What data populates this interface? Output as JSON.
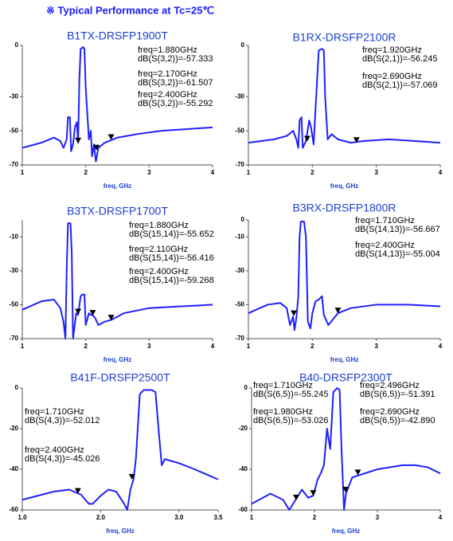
{
  "header": "※ Typical Performance at Tc=25℃",
  "chart_data": [
    {
      "type": "line",
      "title": "B1TX-DRSFP1900T",
      "x_label": "freq, GHz",
      "x": [
        1.0,
        1.3,
        1.5,
        1.6,
        1.65,
        1.7,
        1.72,
        1.75,
        1.77,
        1.8,
        1.83,
        1.86,
        1.88,
        1.9,
        1.92,
        1.96,
        1.98,
        2.0,
        2.05,
        2.08,
        2.1,
        2.13,
        2.16,
        2.2,
        2.3,
        2.5,
        2.8,
        3.2,
        3.6,
        4.0
      ],
      "series": [
        {
          "color": "#1f1fff",
          "values": [
            -60,
            -57,
            -54,
            -56,
            -60,
            -55,
            -42,
            -42,
            -62,
            -58,
            -48,
            -45,
            -57,
            -20,
            -2,
            -1,
            -2,
            -25,
            -55,
            -50,
            -65,
            -58,
            -68,
            -60,
            -57,
            -54,
            -52,
            -50,
            -49,
            -48
          ]
        }
      ],
      "xlim": [
        1,
        4
      ],
      "ylim": [
        -70,
        0
      ],
      "xticks": [
        1,
        2,
        3,
        4
      ],
      "yticks": [
        0,
        -30,
        -50,
        -70
      ],
      "markers": [
        {
          "x": 1.88,
          "value": -57.333,
          "freq": "freq=1.880GHz",
          "label": "dB(S(3,2))=-57.333"
        },
        {
          "x": 2.17,
          "value": -61.507,
          "freq": "freq=2.170GHz",
          "label": "dB(S(3,2))=-61.507"
        },
        {
          "x": 2.4,
          "value": -55.292,
          "freq": "freq=2.400GHz",
          "label": "dB(S(3,2))=-55.292"
        }
      ]
    },
    {
      "type": "line",
      "title": "B1RX-DRSFP2100R",
      "x_label": "freq, GHz",
      "x": [
        1.0,
        1.4,
        1.6,
        1.7,
        1.75,
        1.78,
        1.8,
        1.83,
        1.85,
        1.9,
        1.95,
        1.98,
        2.02,
        2.06,
        2.1,
        2.15,
        2.18,
        2.2,
        2.24,
        2.3,
        2.4,
        2.6,
        2.8,
        3.2,
        3.6,
        4.0
      ],
      "series": [
        {
          "color": "#1f1fff",
          "values": [
            -57,
            -55,
            -53,
            -50,
            -55,
            -60,
            -44,
            -42,
            -60,
            -56,
            -44,
            -48,
            -58,
            -30,
            -3,
            -2,
            -3,
            -30,
            -55,
            -52,
            -55,
            -57,
            -56,
            -55,
            -56,
            -57
          ]
        }
      ],
      "xlim": [
        1,
        4
      ],
      "ylim": [
        -70,
        0
      ],
      "xticks": [
        1,
        2,
        3,
        4
      ],
      "yticks": [
        0,
        -30,
        -50,
        -70
      ],
      "markers": [
        {
          "x": 1.92,
          "value": -56.245,
          "freq": "freq=1.920GHz",
          "label": "dB(S(2,1))=-56.245"
        },
        {
          "x": 2.69,
          "value": -57.069,
          "freq": "freq=2.690GHz",
          "label": "dB(S(2,1))=-57.069"
        }
      ]
    },
    {
      "type": "line",
      "title": "B3TX-DRSFP1700T",
      "x_label": "freq, GHz",
      "x": [
        1.0,
        1.3,
        1.5,
        1.6,
        1.65,
        1.68,
        1.7,
        1.72,
        1.76,
        1.78,
        1.8,
        1.85,
        1.88,
        1.92,
        1.95,
        1.98,
        2.0,
        2.05,
        2.08,
        2.11,
        2.15,
        2.2,
        2.3,
        2.4,
        2.6,
        3.0,
        3.5,
        4.0
      ],
      "series": [
        {
          "color": "#1f1fff",
          "values": [
            -53,
            -48,
            -47,
            -52,
            -60,
            -70,
            -30,
            -2,
            -2,
            -20,
            -70,
            -55,
            -56,
            -45,
            -44,
            -44,
            -62,
            -55,
            -56,
            -56,
            -58,
            -62,
            -60,
            -59,
            -55,
            -52,
            -51,
            -50
          ]
        }
      ],
      "xlim": [
        1,
        4
      ],
      "ylim": [
        -70,
        0
      ],
      "xticks": [
        1,
        2,
        3,
        4
      ],
      "yticks": [
        -10,
        -30,
        -50,
        -70
      ],
      "markers": [
        {
          "x": 1.88,
          "value": -55.652,
          "freq": "freq=1.880GHz",
          "label": "dB(S(15,14))=-55.652"
        },
        {
          "x": 2.11,
          "value": -56.416,
          "freq": "freq=2.110GHz",
          "label": "dB(S(15,14))=-56.416"
        },
        {
          "x": 2.4,
          "value": -59.268,
          "freq": "freq=2.400GHz",
          "label": "dB(S(15,14))=-59.268"
        }
      ]
    },
    {
      "type": "line",
      "title": "B3RX-DRSFP1800R",
      "x_label": "freq, GHz",
      "x": [
        1.0,
        1.3,
        1.5,
        1.6,
        1.65,
        1.7,
        1.72,
        1.75,
        1.78,
        1.8,
        1.82,
        1.87,
        1.9,
        1.93,
        1.97,
        2.0,
        2.05,
        2.1,
        2.15,
        2.18,
        2.25,
        2.4,
        2.6,
        3.0,
        3.5,
        4.0
      ],
      "series": [
        {
          "color": "#1f1fff",
          "values": [
            -55,
            -50,
            -49,
            -52,
            -62,
            -57,
            -65,
            -58,
            -45,
            -10,
            -1,
            -1,
            -10,
            -60,
            -64,
            -55,
            -48,
            -47,
            -45,
            -56,
            -62,
            -55,
            -52,
            -50,
            -50,
            -51
          ]
        }
      ],
      "xlim": [
        1,
        4
      ],
      "ylim": [
        -70,
        0
      ],
      "xticks": [
        1,
        2,
        3,
        4
      ],
      "yticks": [
        0,
        -10,
        -30,
        -50,
        -70
      ],
      "markers": [
        {
          "x": 1.71,
          "value": -56.667,
          "freq": "freq=1.710GHz",
          "label": "dB(S(14,13))=-56.667"
        },
        {
          "x": 2.4,
          "value": -55.004,
          "freq": "freq=2.400GHz",
          "label": "dB(S(14,13))=-55.004"
        }
      ]
    },
    {
      "type": "line",
      "title": "B41F-DRSFP2500T",
      "x_label": "freq, GHz",
      "x": [
        1.0,
        1.2,
        1.4,
        1.6,
        1.75,
        1.85,
        1.9,
        2.0,
        2.1,
        2.2,
        2.3,
        2.34,
        2.38,
        2.42,
        2.45,
        2.5,
        2.55,
        2.65,
        2.7,
        2.75,
        2.78,
        2.82,
        3.0,
        3.2,
        3.5
      ],
      "series": [
        {
          "color": "#1f1fff",
          "values": [
            -55,
            -53,
            -51,
            -50,
            -52.5,
            -57,
            -57,
            -53,
            -50,
            -51,
            -57,
            -60,
            -50,
            -45,
            -35,
            -3,
            -1,
            -1,
            -2,
            -25,
            -38,
            -35,
            -37,
            -40,
            -45
          ]
        }
      ],
      "xlim": [
        1,
        3.5
      ],
      "ylim": [
        -60,
        0
      ],
      "xticks": [
        {
          "value": 1,
          "label": "1.0"
        },
        {
          "value": 2,
          "label": "2.0"
        },
        {
          "value": 3,
          "label": "3.0"
        },
        {
          "value": 3.5,
          "label": "3.5"
        }
      ],
      "yticks": [
        0,
        -20,
        -40,
        -60
      ],
      "markers": [
        {
          "x": 1.71,
          "value": -52.012,
          "freq": "freq=1.710GHz",
          "label": "dB(S(4,3))=-52.012"
        },
        {
          "x": 2.4,
          "value": -45.026,
          "freq": "freq=2.400GHz",
          "label": "dB(S(4,3))=-45.026"
        }
      ]
    },
    {
      "type": "line",
      "title": "B40-DRSFP2300T",
      "x_label": "freq, GHz",
      "x": [
        1.0,
        1.3,
        1.5,
        1.6,
        1.7,
        1.8,
        1.9,
        1.98,
        2.05,
        2.1,
        2.15,
        2.2,
        2.25,
        2.3,
        2.36,
        2.4,
        2.43,
        2.47,
        2.5,
        2.6,
        2.7,
        3.0,
        3.4,
        3.6,
        3.8,
        4.0
      ],
      "series": [
        {
          "color": "#1f1fff",
          "values": [
            -57,
            -52,
            -55,
            -60,
            -55,
            -50,
            -54,
            -53,
            -45,
            -42,
            -38,
            -20,
            -30,
            -2,
            0,
            -1,
            -30,
            -60,
            -52,
            -44,
            -43,
            -40,
            -38,
            -38,
            -39,
            -42
          ]
        }
      ],
      "xlim": [
        1,
        4
      ],
      "ylim": [
        -60,
        0
      ],
      "xticks": [
        1,
        2,
        3,
        4
      ],
      "yticks": [
        0,
        -20,
        -40,
        -60
      ],
      "markers": [
        {
          "x": 1.71,
          "value": -55.245,
          "freq": "freq=1.710GHz",
          "label": "dB(S(6,5))=-55.245"
        },
        {
          "x": 1.98,
          "value": -53.026,
          "freq": "freq=1.980GHz",
          "label": "dB(S(6,5))=-53.026"
        },
        {
          "x": 2.496,
          "value": -51.391,
          "freq": "freq=2.496GHz",
          "label": "dB(S(6,5))=-51.391"
        },
        {
          "x": 2.69,
          "value": -42.89,
          "freq": "freq=2.690GHz",
          "label": "dB(S(6,5))=-42.890"
        }
      ]
    }
  ]
}
